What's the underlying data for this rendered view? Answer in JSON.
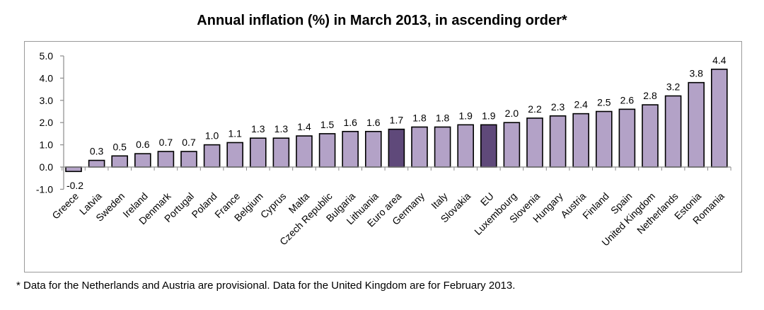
{
  "chart_data": {
    "type": "bar",
    "title": "Annual inflation (%) in March 2013, in ascending order*",
    "xlabel": "",
    "ylabel": "",
    "ylim": [
      -1.0,
      5.0
    ],
    "yticks": [
      "5.0",
      "4.0",
      "3.0",
      "2.0",
      "1.0",
      "0.0",
      "-1.0"
    ],
    "ytick_values": [
      5.0,
      4.0,
      3.0,
      2.0,
      1.0,
      0.0,
      -1.0
    ],
    "grid": false,
    "legend": "none",
    "categories": [
      "Greece",
      "Latvia",
      "Sweden",
      "Ireland",
      "Denmark",
      "Portugal",
      "Poland",
      "France",
      "Belgium",
      "Cyprus",
      "Malta",
      "Czech Republic",
      "Bulgaria",
      "Lithuania",
      "Euro area",
      "Germany",
      "Italy",
      "Slovakia",
      "EU",
      "Luxembourg",
      "Slovenia",
      "Hungary",
      "Austria",
      "Finland",
      "Spain",
      "United Kingdom",
      "Netherlands",
      "Estonia",
      "Romania"
    ],
    "values": [
      -0.2,
      0.3,
      0.5,
      0.6,
      0.7,
      0.7,
      1.0,
      1.1,
      1.3,
      1.3,
      1.4,
      1.5,
      1.6,
      1.6,
      1.7,
      1.8,
      1.8,
      1.9,
      1.9,
      2.0,
      2.2,
      2.3,
      2.4,
      2.5,
      2.6,
      2.8,
      3.2,
      3.8,
      4.4
    ],
    "value_labels": [
      "-0.2",
      "0.3",
      "0.5",
      "0.6",
      "0.7",
      "0.7",
      "1.0",
      "1.1",
      "1.3",
      "1.3",
      "1.4",
      "1.5",
      "1.6",
      "1.6",
      "1.7",
      "1.8",
      "1.8",
      "1.9",
      "1.9",
      "2.0",
      "2.2",
      "2.3",
      "2.4",
      "2.5",
      "2.6",
      "2.8",
      "3.2",
      "3.8",
      "4.4"
    ],
    "highlighted": [
      "Euro area",
      "EU"
    ],
    "colors": {
      "bar": "#b3a2c7",
      "highlight": "#5f497a",
      "bar_outline": "#000000",
      "axis": "#8c8c8c"
    }
  },
  "footnote": "* Data for the Netherlands and Austria are provisional. Data for the United Kingdom are for February 2013."
}
